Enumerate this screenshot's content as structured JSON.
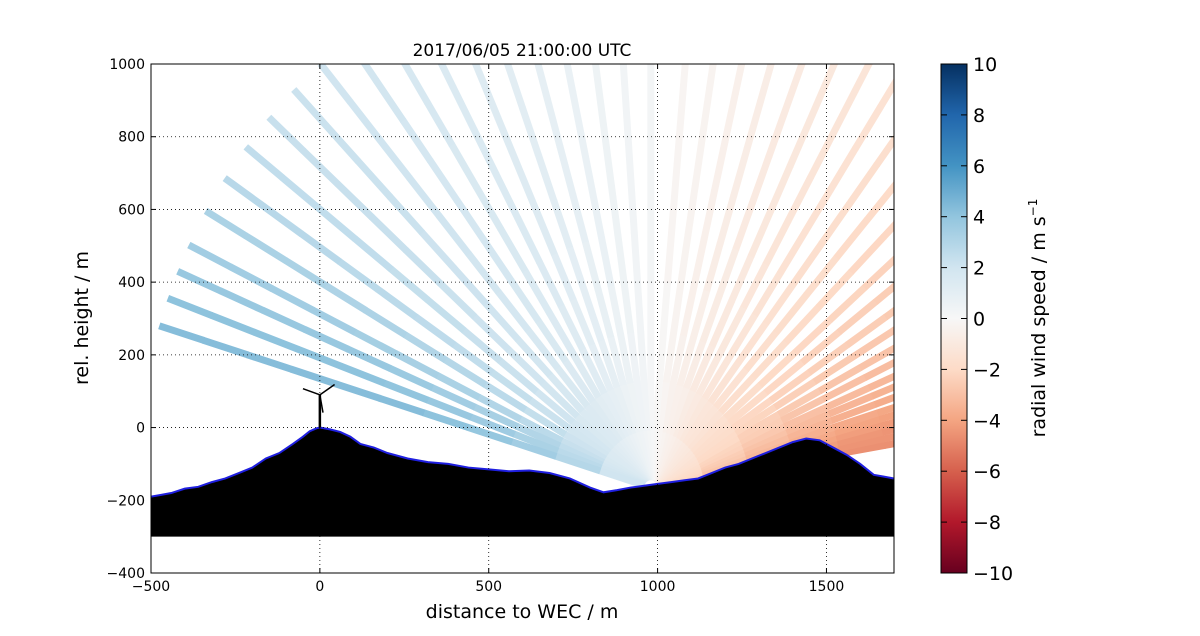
{
  "chart_data": {
    "type": "heatmap",
    "subtype": "radar-scan (RHI) of radial wind speed over terrain",
    "title": "2017/06/05 21:00:00 UTC",
    "xlabel": "distance to WEC / m",
    "ylabel": "rel. height / m",
    "xlim": [
      -500,
      1700
    ],
    "ylim": [
      -400,
      1000
    ],
    "xticks": [
      -500,
      0,
      500,
      1000,
      1500
    ],
    "yticks": [
      -400,
      -200,
      0,
      200,
      400,
      600,
      800,
      1000
    ],
    "grid": true,
    "colorbar": {
      "label_main": "radial wind speed / m s",
      "label_exp": "−1",
      "range": [
        -10,
        10
      ],
      "ticks": [
        10,
        8,
        6,
        4,
        2,
        0,
        -2,
        -4,
        -6,
        -8,
        -10
      ],
      "tick_labels": [
        "10",
        "8",
        "6",
        "4",
        "2",
        "0",
        "−2",
        "−4",
        "−6",
        "−8",
        "−10"
      ],
      "colormap": [
        "#67001f",
        "#b2182b",
        "#d6604d",
        "#f4a582",
        "#fddbc7",
        "#f7f7f7",
        "#d1e5f0",
        "#92c5de",
        "#4393c3",
        "#2166ac",
        "#053061"
      ]
    },
    "scanner_position": [
      980,
      -165
    ],
    "wec_position": [
      0,
      0
    ],
    "terrain_profile": {
      "x": [
        -500,
        -470,
        -440,
        -400,
        -360,
        -320,
        -280,
        -240,
        -200,
        -160,
        -120,
        -80,
        -50,
        -30,
        -10,
        0,
        30,
        60,
        90,
        120,
        160,
        200,
        260,
        320,
        380,
        440,
        500,
        560,
        620,
        680,
        740,
        800,
        840,
        880,
        920,
        960,
        1000,
        1040,
        1080,
        1120,
        1160,
        1200,
        1240,
        1280,
        1320,
        1360,
        1400,
        1440,
        1480,
        1520,
        1560,
        1600,
        1640,
        1670,
        1700
      ],
      "y": [
        -190,
        -185,
        -180,
        -168,
        -163,
        -150,
        -140,
        -125,
        -110,
        -85,
        -70,
        -45,
        -25,
        -10,
        -2,
        0,
        -5,
        -12,
        -25,
        -45,
        -55,
        -70,
        -85,
        -95,
        -100,
        -110,
        -115,
        -120,
        -118,
        -125,
        -140,
        -165,
        -178,
        -172,
        -165,
        -160,
        -155,
        -150,
        -145,
        -140,
        -125,
        -110,
        -100,
        -85,
        -70,
        -55,
        -40,
        -30,
        -35,
        -55,
        -75,
        -100,
        -130,
        -135,
        -140
      ]
    },
    "terrain_base": -300,
    "beams": [
      {
        "elev_deg": 9.5,
        "speeds": [
          -2.6,
          -3.4,
          -4.1,
          -4.4,
          -4.6,
          -4.6,
          -4.6,
          -4.6,
          -4.6,
          -4.7,
          -4.6
        ]
      },
      {
        "elev_deg": 11,
        "speeds": [
          -2.5,
          -3.3,
          -4.0,
          -4.3,
          -4.5,
          -4.5,
          -4.5,
          -4.5,
          -4.6,
          -4.6,
          -4.6
        ]
      },
      {
        "elev_deg": 12.5,
        "speeds": [
          -2.4,
          -3.2,
          -3.8,
          -4.2,
          -4.4,
          -4.5,
          -4.4,
          -4.4,
          -4.5,
          -4.5,
          -4.5
        ]
      },
      {
        "elev_deg": 14,
        "speeds": [
          -2.3,
          -3.0,
          -3.6,
          -4.0,
          -4.2,
          -4.3,
          -4.3,
          -4.3,
          -4.4,
          -4.4,
          -4.4
        ]
      },
      {
        "elev_deg": 15.5,
        "speeds": [
          -2.2,
          -2.9,
          -3.4,
          -3.8,
          -4.0,
          -4.1,
          -4.1,
          -4.1,
          -4.2,
          -4.2,
          -4.3
        ]
      },
      {
        "elev_deg": 17,
        "speeds": [
          -2.1,
          -2.8,
          -3.3,
          -3.6,
          -3.8,
          -3.9,
          -3.9,
          -3.9,
          -4.0,
          -4.1,
          -4.1
        ]
      },
      {
        "elev_deg": 19,
        "speeds": [
          -2.0,
          -2.6,
          -3.1,
          -3.4,
          -3.6,
          -3.7,
          -3.7,
          -3.7,
          -3.8,
          -3.9,
          -3.9
        ]
      },
      {
        "elev_deg": 21,
        "speeds": [
          -1.9,
          -2.5,
          -2.9,
          -3.2,
          -3.4,
          -3.5,
          -3.5,
          -3.5,
          -3.6,
          -3.7,
          -3.7
        ]
      },
      {
        "elev_deg": 23,
        "speeds": [
          -1.8,
          -2.3,
          -2.7,
          -3.0,
          -3.2,
          -3.3,
          -3.3,
          -3.3,
          -3.4,
          -3.5,
          -3.5
        ]
      },
      {
        "elev_deg": 25.5,
        "speeds": [
          -1.7,
          -2.2,
          -2.5,
          -2.8,
          -3.0,
          -3.1,
          -3.1,
          -3.1,
          -3.2,
          -3.2,
          -3.3
        ]
      },
      {
        "elev_deg": 28,
        "speeds": [
          -1.6,
          -2.0,
          -2.4,
          -2.6,
          -2.8,
          -2.9,
          -2.9,
          -2.9,
          -3.0,
          -3.0,
          -3.1
        ]
      },
      {
        "elev_deg": 31,
        "speeds": [
          -1.5,
          -1.9,
          -2.2,
          -2.4,
          -2.6,
          -2.7,
          -2.7,
          -2.7,
          -2.8,
          -2.8,
          -2.8
        ]
      },
      {
        "elev_deg": 34,
        "speeds": [
          -1.4,
          -1.8,
          -2.1,
          -2.3,
          -2.4,
          -2.5,
          -2.6,
          -2.6,
          -2.6,
          -2.6,
          -2.6
        ]
      },
      {
        "elev_deg": 37.5,
        "speeds": [
          -1.3,
          -1.7,
          -1.9,
          -2.1,
          -2.3,
          -2.4,
          -2.5,
          -2.5,
          -2.5,
          -2.5,
          -2.5
        ]
      },
      {
        "elev_deg": 41,
        "speeds": [
          -1.2,
          -1.6,
          -1.8,
          -2.0,
          -2.1,
          -2.2,
          -2.3,
          -2.3,
          -2.3,
          -2.3,
          -2.3
        ]
      },
      {
        "elev_deg": 45,
        "speeds": [
          -1.1,
          -1.4,
          -1.7,
          -1.8,
          -1.9,
          -2.0,
          -2.1,
          -2.1,
          -2.1,
          -2.1,
          -2.1
        ]
      },
      {
        "elev_deg": 49,
        "speeds": [
          -1.0,
          -1.3,
          -1.5,
          -1.7,
          -1.8,
          -1.8,
          -1.9,
          -1.9,
          -1.9,
          -1.9,
          -1.9
        ]
      },
      {
        "elev_deg": 53,
        "speeds": [
          -0.9,
          -1.2,
          -1.4,
          -1.5,
          -1.6,
          -1.7,
          -1.7,
          -1.7,
          -1.7,
          -1.7,
          -1.7
        ]
      },
      {
        "elev_deg": 57,
        "speeds": [
          -0.8,
          -1.1,
          -1.2,
          -1.3,
          -1.4,
          -1.5,
          -1.5,
          -1.5,
          -1.5,
          -1.5,
          -1.5
        ]
      },
      {
        "elev_deg": 61,
        "speeds": [
          -0.7,
          -0.9,
          -1.0,
          -1.1,
          -1.2,
          -1.3,
          -1.3,
          -1.3,
          -1.3,
          -1.3,
          -1.3
        ]
      },
      {
        "elev_deg": 65,
        "speeds": [
          -0.6,
          -0.8,
          -0.9,
          -1.0,
          -1.0,
          -1.1,
          -1.1,
          -1.1,
          -1.1,
          -1.1,
          -1.1
        ]
      },
      {
        "elev_deg": 69,
        "speeds": [
          -0.5,
          -0.6,
          -0.7,
          -0.8,
          -0.8,
          -0.9,
          -0.9,
          -0.9,
          -0.9,
          -0.9,
          -0.9
        ]
      },
      {
        "elev_deg": 73,
        "speeds": [
          -0.4,
          -0.5,
          -0.6,
          -0.6,
          -0.7,
          -0.7,
          -0.7,
          -0.7,
          -0.7,
          -0.7,
          -0.7
        ]
      },
      {
        "elev_deg": 77,
        "speeds": [
          -0.3,
          -0.4,
          -0.4,
          -0.5,
          -0.5,
          -0.5,
          -0.5,
          -0.5,
          -0.5,
          -0.5,
          -0.5
        ]
      },
      {
        "elev_deg": 81,
        "speeds": [
          -0.2,
          -0.2,
          -0.3,
          -0.3,
          -0.3,
          -0.3,
          -0.3,
          -0.3,
          -0.3,
          -0.3,
          -0.3
        ]
      },
      {
        "elev_deg": 85,
        "speeds": [
          -0.1,
          -0.1,
          -0.1,
          -0.1,
          -0.2,
          -0.2,
          -0.2,
          -0.2,
          -0.2,
          -0.2,
          -0.2
        ]
      },
      {
        "elev_deg": 90,
        "speeds": [
          0.1,
          0.1,
          0.1,
          0.1,
          0.2,
          0.2,
          0.2,
          0.2,
          0.2,
          0.2,
          0.2
        ]
      },
      {
        "elev_deg": 94,
        "speeds": [
          0.2,
          0.3,
          0.3,
          0.3,
          0.3,
          0.3,
          0.3,
          0.3,
          0.3,
          0.3,
          0.3
        ]
      },
      {
        "elev_deg": 98,
        "speeds": [
          0.3,
          0.4,
          0.4,
          0.5,
          0.5,
          0.5,
          0.5,
          0.5,
          0.5,
          0.5,
          0.5
        ]
      },
      {
        "elev_deg": 102,
        "speeds": [
          0.4,
          0.5,
          0.6,
          0.6,
          0.7,
          0.7,
          0.7,
          0.7,
          0.7,
          0.7,
          0.7
        ]
      },
      {
        "elev_deg": 106,
        "speeds": [
          0.5,
          0.6,
          0.7,
          0.8,
          0.8,
          0.9,
          0.9,
          0.9,
          0.9,
          0.9,
          0.9
        ]
      },
      {
        "elev_deg": 110,
        "speeds": [
          0.6,
          0.8,
          0.9,
          1.0,
          1.0,
          1.1,
          1.1,
          1.1,
          1.1,
          1.1,
          1.1
        ]
      },
      {
        "elev_deg": 114,
        "speeds": [
          0.7,
          0.9,
          1.0,
          1.1,
          1.2,
          1.3,
          1.3,
          1.3,
          1.3,
          1.3,
          1.3
        ]
      },
      {
        "elev_deg": 118,
        "speeds": [
          0.8,
          1.0,
          1.2,
          1.3,
          1.4,
          1.5,
          1.5,
          1.5,
          1.5,
          1.5,
          1.5
        ]
      },
      {
        "elev_deg": 122,
        "speeds": [
          0.9,
          1.1,
          1.3,
          1.4,
          1.5,
          1.6,
          1.6,
          1.6,
          1.7,
          1.7,
          1.7
        ]
      },
      {
        "elev_deg": 126,
        "speeds": [
          1.0,
          1.3,
          1.4,
          1.6,
          1.7,
          1.8,
          1.8,
          1.8,
          1.8,
          1.9,
          1.9
        ]
      },
      {
        "elev_deg": 130,
        "speeds": [
          1.1,
          1.4,
          1.6,
          1.7,
          1.8,
          1.9,
          2.0,
          2.0,
          2.0,
          2.0,
          2.0
        ]
      },
      {
        "elev_deg": 134,
        "speeds": [
          1.2,
          1.5,
          1.7,
          1.9,
          2.0,
          2.1,
          2.1,
          2.2,
          2.2,
          2.2,
          2.2
        ]
      },
      {
        "elev_deg": 138,
        "speeds": [
          1.3,
          1.6,
          1.9,
          2.0,
          2.1,
          2.2,
          2.3,
          2.3,
          2.3,
          2.3,
          2.3
        ]
      },
      {
        "elev_deg": 142,
        "speeds": [
          1.4,
          1.8,
          2.0,
          2.2,
          2.3,
          2.4,
          2.4,
          2.5,
          2.5,
          2.5,
          2.5
        ]
      },
      {
        "elev_deg": 146,
        "speeds": [
          1.5,
          1.9,
          2.2,
          2.4,
          2.5,
          2.6,
          2.7,
          2.7,
          2.8,
          2.8,
          2.8
        ]
      },
      {
        "elev_deg": 150,
        "speeds": [
          1.6,
          2.1,
          2.4,
          2.7,
          2.9,
          3.0,
          3.1,
          3.1,
          3.2,
          3.2,
          3.2
        ]
      },
      {
        "elev_deg": 154,
        "speeds": [
          1.7,
          2.3,
          2.7,
          3.0,
          3.2,
          3.3,
          3.4,
          3.5,
          3.5,
          3.5,
          3.5
        ]
      },
      {
        "elev_deg": 157,
        "speeds": [
          1.8,
          2.5,
          3.0,
          3.3,
          3.5,
          3.7,
          3.8,
          3.8,
          3.8,
          3.8,
          3.8
        ]
      },
      {
        "elev_deg": 160,
        "speeds": [
          1.9,
          2.7,
          3.2,
          3.6,
          3.8,
          4.0,
          4.1,
          4.1,
          4.1,
          4.1,
          4.1
        ]
      },
      {
        "elev_deg": 163,
        "speeds": [
          2.0,
          2.9,
          3.5,
          3.9,
          4.1,
          4.3,
          4.3,
          4.3,
          4.3,
          4.3,
          4.3
        ]
      }
    ]
  }
}
